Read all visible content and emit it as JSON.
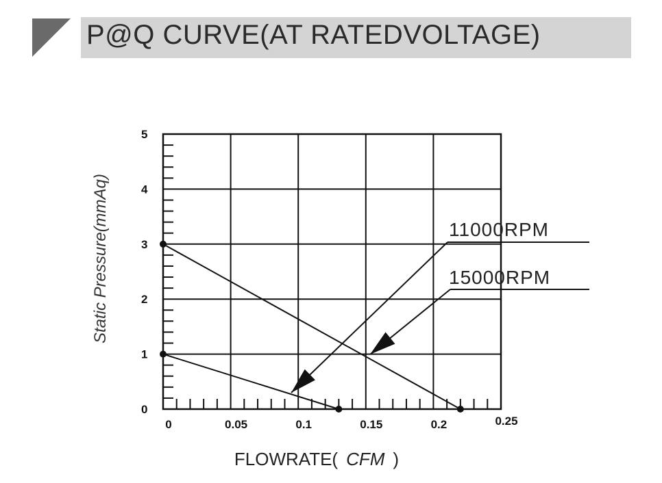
{
  "title": "P@Q CURVE(AT RATEDVOLTAGE)",
  "colors": {
    "title_bg": "#d4d4d4",
    "corner": "#6a6a6a",
    "line": "#111111"
  },
  "chart_data": {
    "type": "line",
    "title": "P@Q CURVE(AT RATEDVOLTAGE)",
    "ylabel": "Static Pressure(mmAq)",
    "xlabel_prefix": "FLOWRATE(",
    "xlabel_unit": "CFM",
    "xlabel_suffix": ")",
    "xlim": [
      0,
      0.25
    ],
    "ylim": [
      0,
      5
    ],
    "x_ticks": [
      "0",
      "0.05",
      "0.1",
      "0.15",
      "0.2",
      "0.25"
    ],
    "y_ticks": [
      "0",
      "1",
      "2",
      "3",
      "4",
      "5"
    ],
    "grid": true,
    "series": [
      {
        "name": "11000RPM",
        "points": [
          [
            0,
            1
          ],
          [
            0.13,
            0
          ]
        ]
      },
      {
        "name": "15000RPM",
        "points": [
          [
            0,
            3
          ],
          [
            0.22,
            0
          ]
        ]
      }
    ]
  }
}
